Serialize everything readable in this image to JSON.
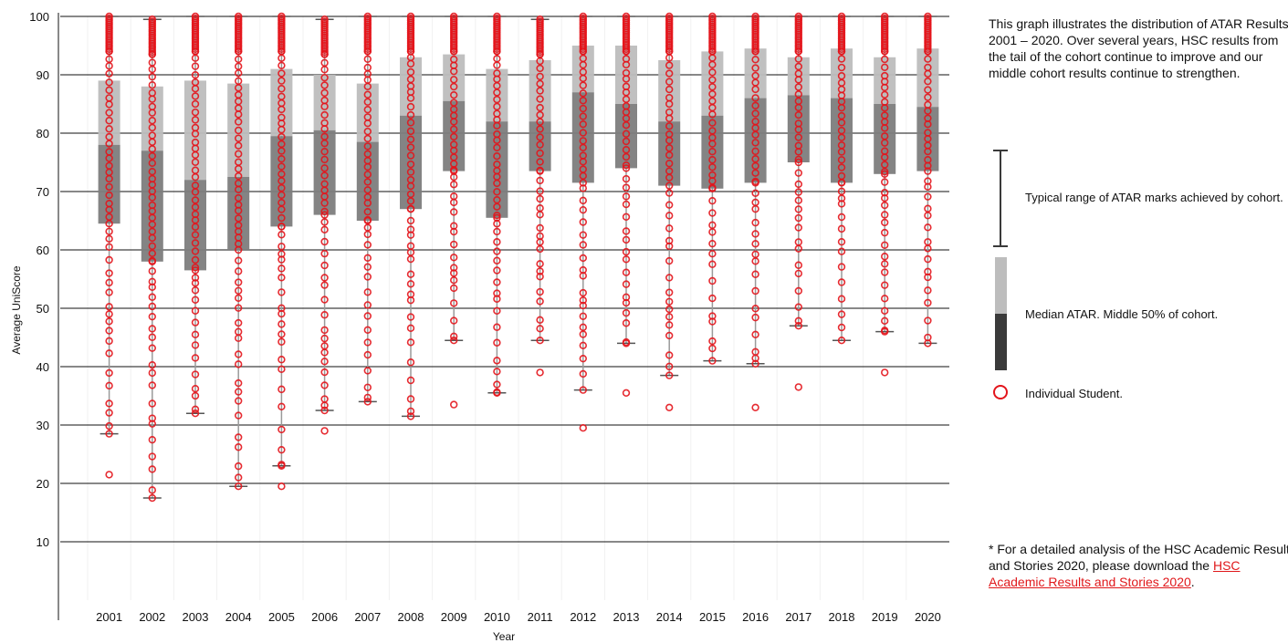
{
  "chart_data": {
    "type": "box-with-points",
    "ylabel": "Average UniScore",
    "xlabel": "Year",
    "ylim": [
      0,
      100
    ],
    "yticks": [
      10,
      20,
      30,
      40,
      50,
      60,
      70,
      80,
      90,
      100
    ],
    "grid": "horizontal",
    "colors": {
      "upper_box": "#bdbdbd",
      "lower_box": "#7d7d7d",
      "whisker": "#9a9a9a",
      "point_stroke": "#e3141b",
      "legend_dark": "#3a3a3a"
    },
    "categories": [
      "2001",
      "2002",
      "2003",
      "2004",
      "2005",
      "2006",
      "2007",
      "2008",
      "2009",
      "2010",
      "2011",
      "2012",
      "2013",
      "2014",
      "2015",
      "2016",
      "2017",
      "2018",
      "2019",
      "2020"
    ],
    "boxes": [
      {
        "year": "2001",
        "min": 28.5,
        "q1": 64.5,
        "median": 78,
        "q3": 89,
        "max": 100
      },
      {
        "year": "2002",
        "min": 17.5,
        "q1": 58,
        "median": 77,
        "q3": 88,
        "max": 99.5
      },
      {
        "year": "2003",
        "min": 32,
        "q1": 56.5,
        "median": 72,
        "q3": 89,
        "max": 100
      },
      {
        "year": "2004",
        "min": 19.5,
        "q1": 60,
        "median": 72.5,
        "q3": 88.5,
        "max": 100
      },
      {
        "year": "2005",
        "min": 23,
        "q1": 64,
        "median": 79.5,
        "q3": 91,
        "max": 100
      },
      {
        "year": "2006",
        "min": 32.5,
        "q1": 66,
        "median": 80.5,
        "q3": 90,
        "max": 99.5
      },
      {
        "year": "2007",
        "min": 34,
        "q1": 65,
        "median": 78.5,
        "q3": 88.5,
        "max": 100
      },
      {
        "year": "2008",
        "min": 31.5,
        "q1": 67,
        "median": 83,
        "q3": 93,
        "max": 100
      },
      {
        "year": "2009",
        "min": 44.5,
        "q1": 73.5,
        "median": 85.5,
        "q3": 93.5,
        "max": 100
      },
      {
        "year": "2010",
        "min": 35.5,
        "q1": 65.5,
        "median": 82,
        "q3": 91,
        "max": 100
      },
      {
        "year": "2011",
        "min": 44.5,
        "q1": 73.5,
        "median": 82,
        "q3": 92.5,
        "max": 99.5
      },
      {
        "year": "2012",
        "min": 36,
        "q1": 71.5,
        "median": 87,
        "q3": 95,
        "max": 100
      },
      {
        "year": "2013",
        "min": 44,
        "q1": 74,
        "median": 85,
        "q3": 95,
        "max": 100
      },
      {
        "year": "2014",
        "min": 38.5,
        "q1": 71,
        "median": 82,
        "q3": 92.5,
        "max": 100
      },
      {
        "year": "2015",
        "min": 41,
        "q1": 70.5,
        "median": 83,
        "q3": 94,
        "max": 100
      },
      {
        "year": "2016",
        "min": 40.5,
        "q1": 71.5,
        "median": 86,
        "q3": 94.5,
        "max": 100
      },
      {
        "year": "2017",
        "min": 47,
        "q1": 75,
        "median": 86.5,
        "q3": 93,
        "max": 100
      },
      {
        "year": "2018",
        "min": 44.5,
        "q1": 71.5,
        "median": 86,
        "q3": 94.5,
        "max": 100
      },
      {
        "year": "2019",
        "min": 46,
        "q1": 73,
        "median": 85,
        "q3": 93,
        "max": 100
      },
      {
        "year": "2020",
        "min": 44,
        "q1": 73.5,
        "median": 84.5,
        "q3": 94.5,
        "max": 100
      }
    ],
    "outliers": [
      {
        "year": "2001",
        "values": [
          21.5
        ]
      },
      {
        "year": "2002",
        "values": []
      },
      {
        "year": "2003",
        "values": []
      },
      {
        "year": "2004",
        "values": []
      },
      {
        "year": "2005",
        "values": [
          19.5
        ]
      },
      {
        "year": "2006",
        "values": [
          29
        ]
      },
      {
        "year": "2007",
        "values": []
      },
      {
        "year": "2008",
        "values": []
      },
      {
        "year": "2009",
        "values": [
          33.5
        ]
      },
      {
        "year": "2010",
        "values": []
      },
      {
        "year": "2011",
        "values": [
          39
        ]
      },
      {
        "year": "2012",
        "values": [
          29.5
        ]
      },
      {
        "year": "2013",
        "values": [
          35.5
        ]
      },
      {
        "year": "2014",
        "values": [
          33
        ]
      },
      {
        "year": "2015",
        "values": []
      },
      {
        "year": "2016",
        "values": [
          33
        ]
      },
      {
        "year": "2017",
        "values": [
          36.5
        ]
      },
      {
        "year": "2018",
        "values": []
      },
      {
        "year": "2019",
        "values": [
          39
        ]
      },
      {
        "year": "2020",
        "values": []
      }
    ]
  },
  "side_panel": {
    "description": "This graph illustrates the distribution of ATAR Results 2001 – 2020. Over several years, HSC results from the tail of the cohort continue to improve and our middle cohort results continue to strengthen.",
    "legend": {
      "range_label": "Typical range of ATAR marks achieved by cohort.",
      "median_label": "Median ATAR. Middle 50% of cohort.",
      "student_label": "Individual Student."
    },
    "footnote_prefix": "* For a detailed analysis of the HSC Academic Results and Stories 2020, please download the ",
    "footnote_link": "HSC Academic Results and Stories 2020",
    "footnote_suffix": "."
  }
}
